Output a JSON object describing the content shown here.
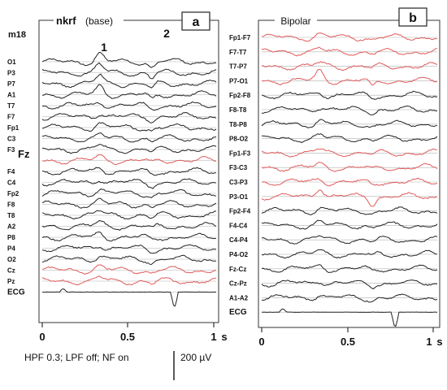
{
  "panel_a": {
    "letter": "a",
    "title_bold": "nkrf",
    "title_rest": "(base)",
    "subject": "m18",
    "reference_label": "Fz",
    "peaks": [
      "1",
      "2"
    ],
    "channels": [
      {
        "label": "O1",
        "color": "#222222"
      },
      {
        "label": "P3",
        "color": "#222222"
      },
      {
        "label": "P7",
        "color": "#222222"
      },
      {
        "label": "A1",
        "color": "#222222"
      },
      {
        "label": "T7",
        "color": "#222222"
      },
      {
        "label": "F7",
        "color": "#222222"
      },
      {
        "label": "Fp1",
        "color": "#222222"
      },
      {
        "label": "C3",
        "color": "#222222"
      },
      {
        "label": "F3",
        "color": "#222222"
      },
      {
        "label": "",
        "color": "#e05a5a"
      },
      {
        "label": "F4",
        "color": "#222222"
      },
      {
        "label": "C4",
        "color": "#222222"
      },
      {
        "label": "Fp2",
        "color": "#222222"
      },
      {
        "label": "F8",
        "color": "#222222"
      },
      {
        "label": "T8",
        "color": "#222222"
      },
      {
        "label": "A2",
        "color": "#222222"
      },
      {
        "label": "P8",
        "color": "#222222"
      },
      {
        "label": "P4",
        "color": "#222222"
      },
      {
        "label": "O2",
        "color": "#222222"
      },
      {
        "label": "Cz",
        "color": "#e05a5a"
      },
      {
        "label": "Pz",
        "color": "#e05a5a"
      },
      {
        "label": "ECG",
        "color": "#222222"
      }
    ],
    "x_ticks": [
      "0",
      "0.5",
      "1"
    ],
    "x_unit": "s"
  },
  "panel_b": {
    "letter": "b",
    "title": "Bipolar",
    "channels": [
      {
        "label": "Fp1-F7",
        "color": "#e05a5a"
      },
      {
        "label": "F7-T7",
        "color": "#e05a5a"
      },
      {
        "label": "T7-P7",
        "color": "#e05a5a"
      },
      {
        "label": "P7-O1",
        "color": "#e05a5a"
      },
      {
        "label": "Fp2-F8",
        "color": "#222222"
      },
      {
        "label": "F8-T8",
        "color": "#222222"
      },
      {
        "label": "T8-P8",
        "color": "#222222"
      },
      {
        "label": "P8-O2",
        "color": "#222222"
      },
      {
        "label": "Fp1-F3",
        "color": "#e05a5a"
      },
      {
        "label": "F3-C3",
        "color": "#e05a5a"
      },
      {
        "label": "C3-P3",
        "color": "#e05a5a"
      },
      {
        "label": "P3-O1",
        "color": "#e05a5a"
      },
      {
        "label": "Fp2-F4",
        "color": "#222222"
      },
      {
        "label": "F4-C4",
        "color": "#222222"
      },
      {
        "label": "C4-P4",
        "color": "#222222"
      },
      {
        "label": "P4-O2",
        "color": "#222222"
      },
      {
        "label": "Fz-Cz",
        "color": "#222222"
      },
      {
        "label": "Cz-Pz",
        "color": "#222222"
      },
      {
        "label": "A1-A2",
        "color": "#222222"
      },
      {
        "label": "ECG",
        "color": "#222222"
      }
    ],
    "x_ticks": [
      "0",
      "0.5",
      "1"
    ],
    "x_unit": "s"
  },
  "filter_note": "HPF 0.3; LPF off;  NF on",
  "scale_bar_label": "200 µV"
}
